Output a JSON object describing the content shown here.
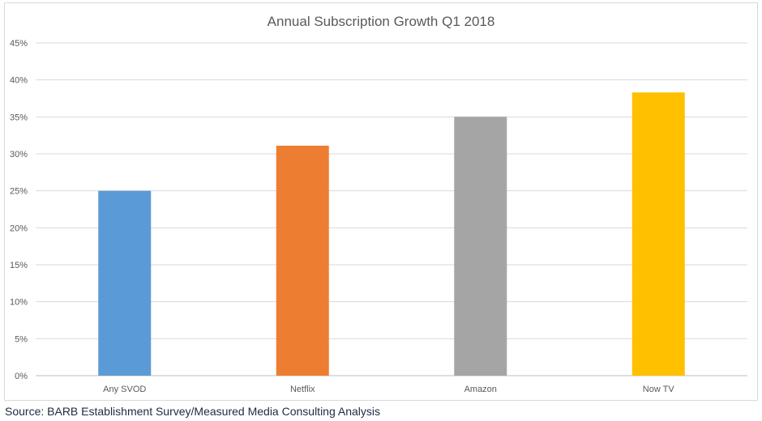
{
  "chart_data": {
    "type": "bar",
    "title": "Annual Subscription Growth Q1 2018",
    "categories": [
      "Any SVOD",
      "Netflix",
      "Amazon",
      "Now TV"
    ],
    "values": [
      25,
      31.1,
      35,
      38.3
    ],
    "colors": [
      "#5b9bd5",
      "#ed7d31",
      "#a5a5a5",
      "#ffc000"
    ],
    "value_unit": "%",
    "xlabel": "",
    "ylabel": "",
    "ylim": [
      0,
      45
    ],
    "yticks": [
      "0%",
      "5%",
      "10%",
      "15%",
      "20%",
      "25%",
      "30%",
      "35%",
      "40%",
      "45%"
    ],
    "grid": true,
    "legend": "none"
  },
  "source": "Source: BARB Establishment Survey/Measured Media Consulting Analysis"
}
